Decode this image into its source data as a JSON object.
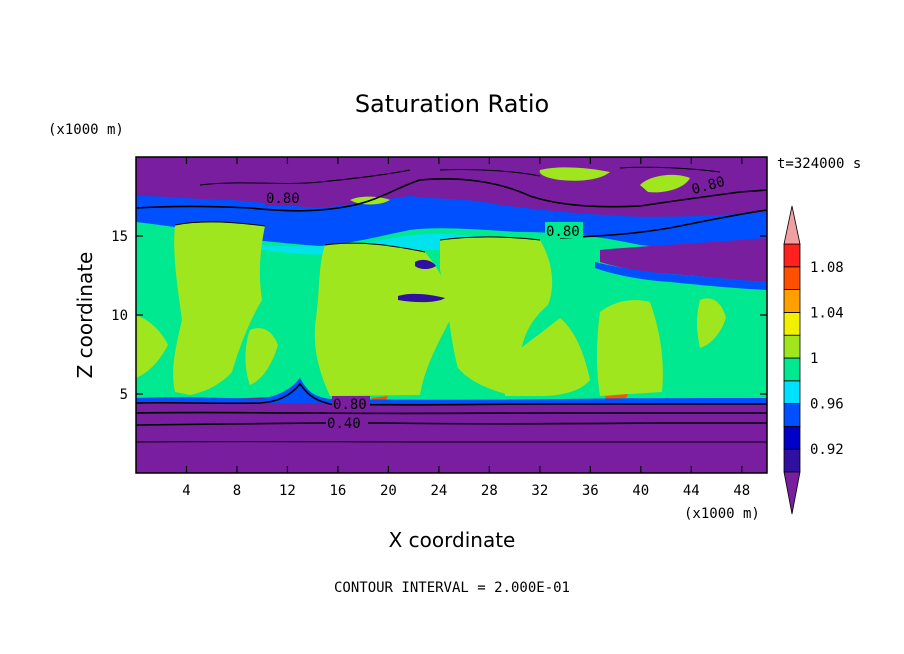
{
  "title": "Saturation Ratio",
  "time_label": "t=324000 s",
  "contour_interval_label": "CONTOUR INTERVAL = 2.000E-01",
  "chart_data": {
    "type": "heatmap",
    "title": "Saturation Ratio",
    "xlabel": "X coordinate",
    "ylabel": "Z coordinate",
    "x_unit": "(x1000 m)",
    "y_unit": "(x1000 m)",
    "xlim": [
      0,
      50
    ],
    "ylim": [
      0,
      20
    ],
    "x_ticks": [
      4,
      8,
      12,
      16,
      20,
      24,
      28,
      32,
      36,
      40,
      44,
      48
    ],
    "y_ticks": [
      5,
      10,
      15
    ],
    "colorbar": {
      "levels": [
        0.9,
        0.92,
        0.94,
        0.96,
        0.98,
        1.0,
        1.02,
        1.04,
        1.06,
        1.08,
        1.1
      ],
      "tick_labels": [
        "1.08",
        "1.04",
        "1",
        "0.96",
        "0.92"
      ],
      "colors": [
        "#7a1ea0",
        "#3010a0",
        "#0000c8",
        "#0050ff",
        "#00e0ff",
        "#00e890",
        "#a0e61e",
        "#f0f000",
        "#ffa000",
        "#ff5000",
        "#ff2020",
        "#f0a0a0"
      ]
    },
    "contour_labels": [
      "0.80",
      "0.80",
      "0.80",
      "0.80",
      "0.40"
    ],
    "contour_interval": 0.2,
    "regions": {
      "upper_dry_layer_z": [
        16.5,
        20
      ],
      "moist_layer_z": [
        4.6,
        16.5
      ],
      "lower_dry_layer_z": [
        0,
        4.6
      ],
      "supersaturated_blocks_x": [
        [
          3,
          10
        ],
        [
          14,
          21
        ],
        [
          21,
          34
        ],
        [
          29,
          37
        ],
        [
          36,
          42
        ]
      ]
    }
  }
}
